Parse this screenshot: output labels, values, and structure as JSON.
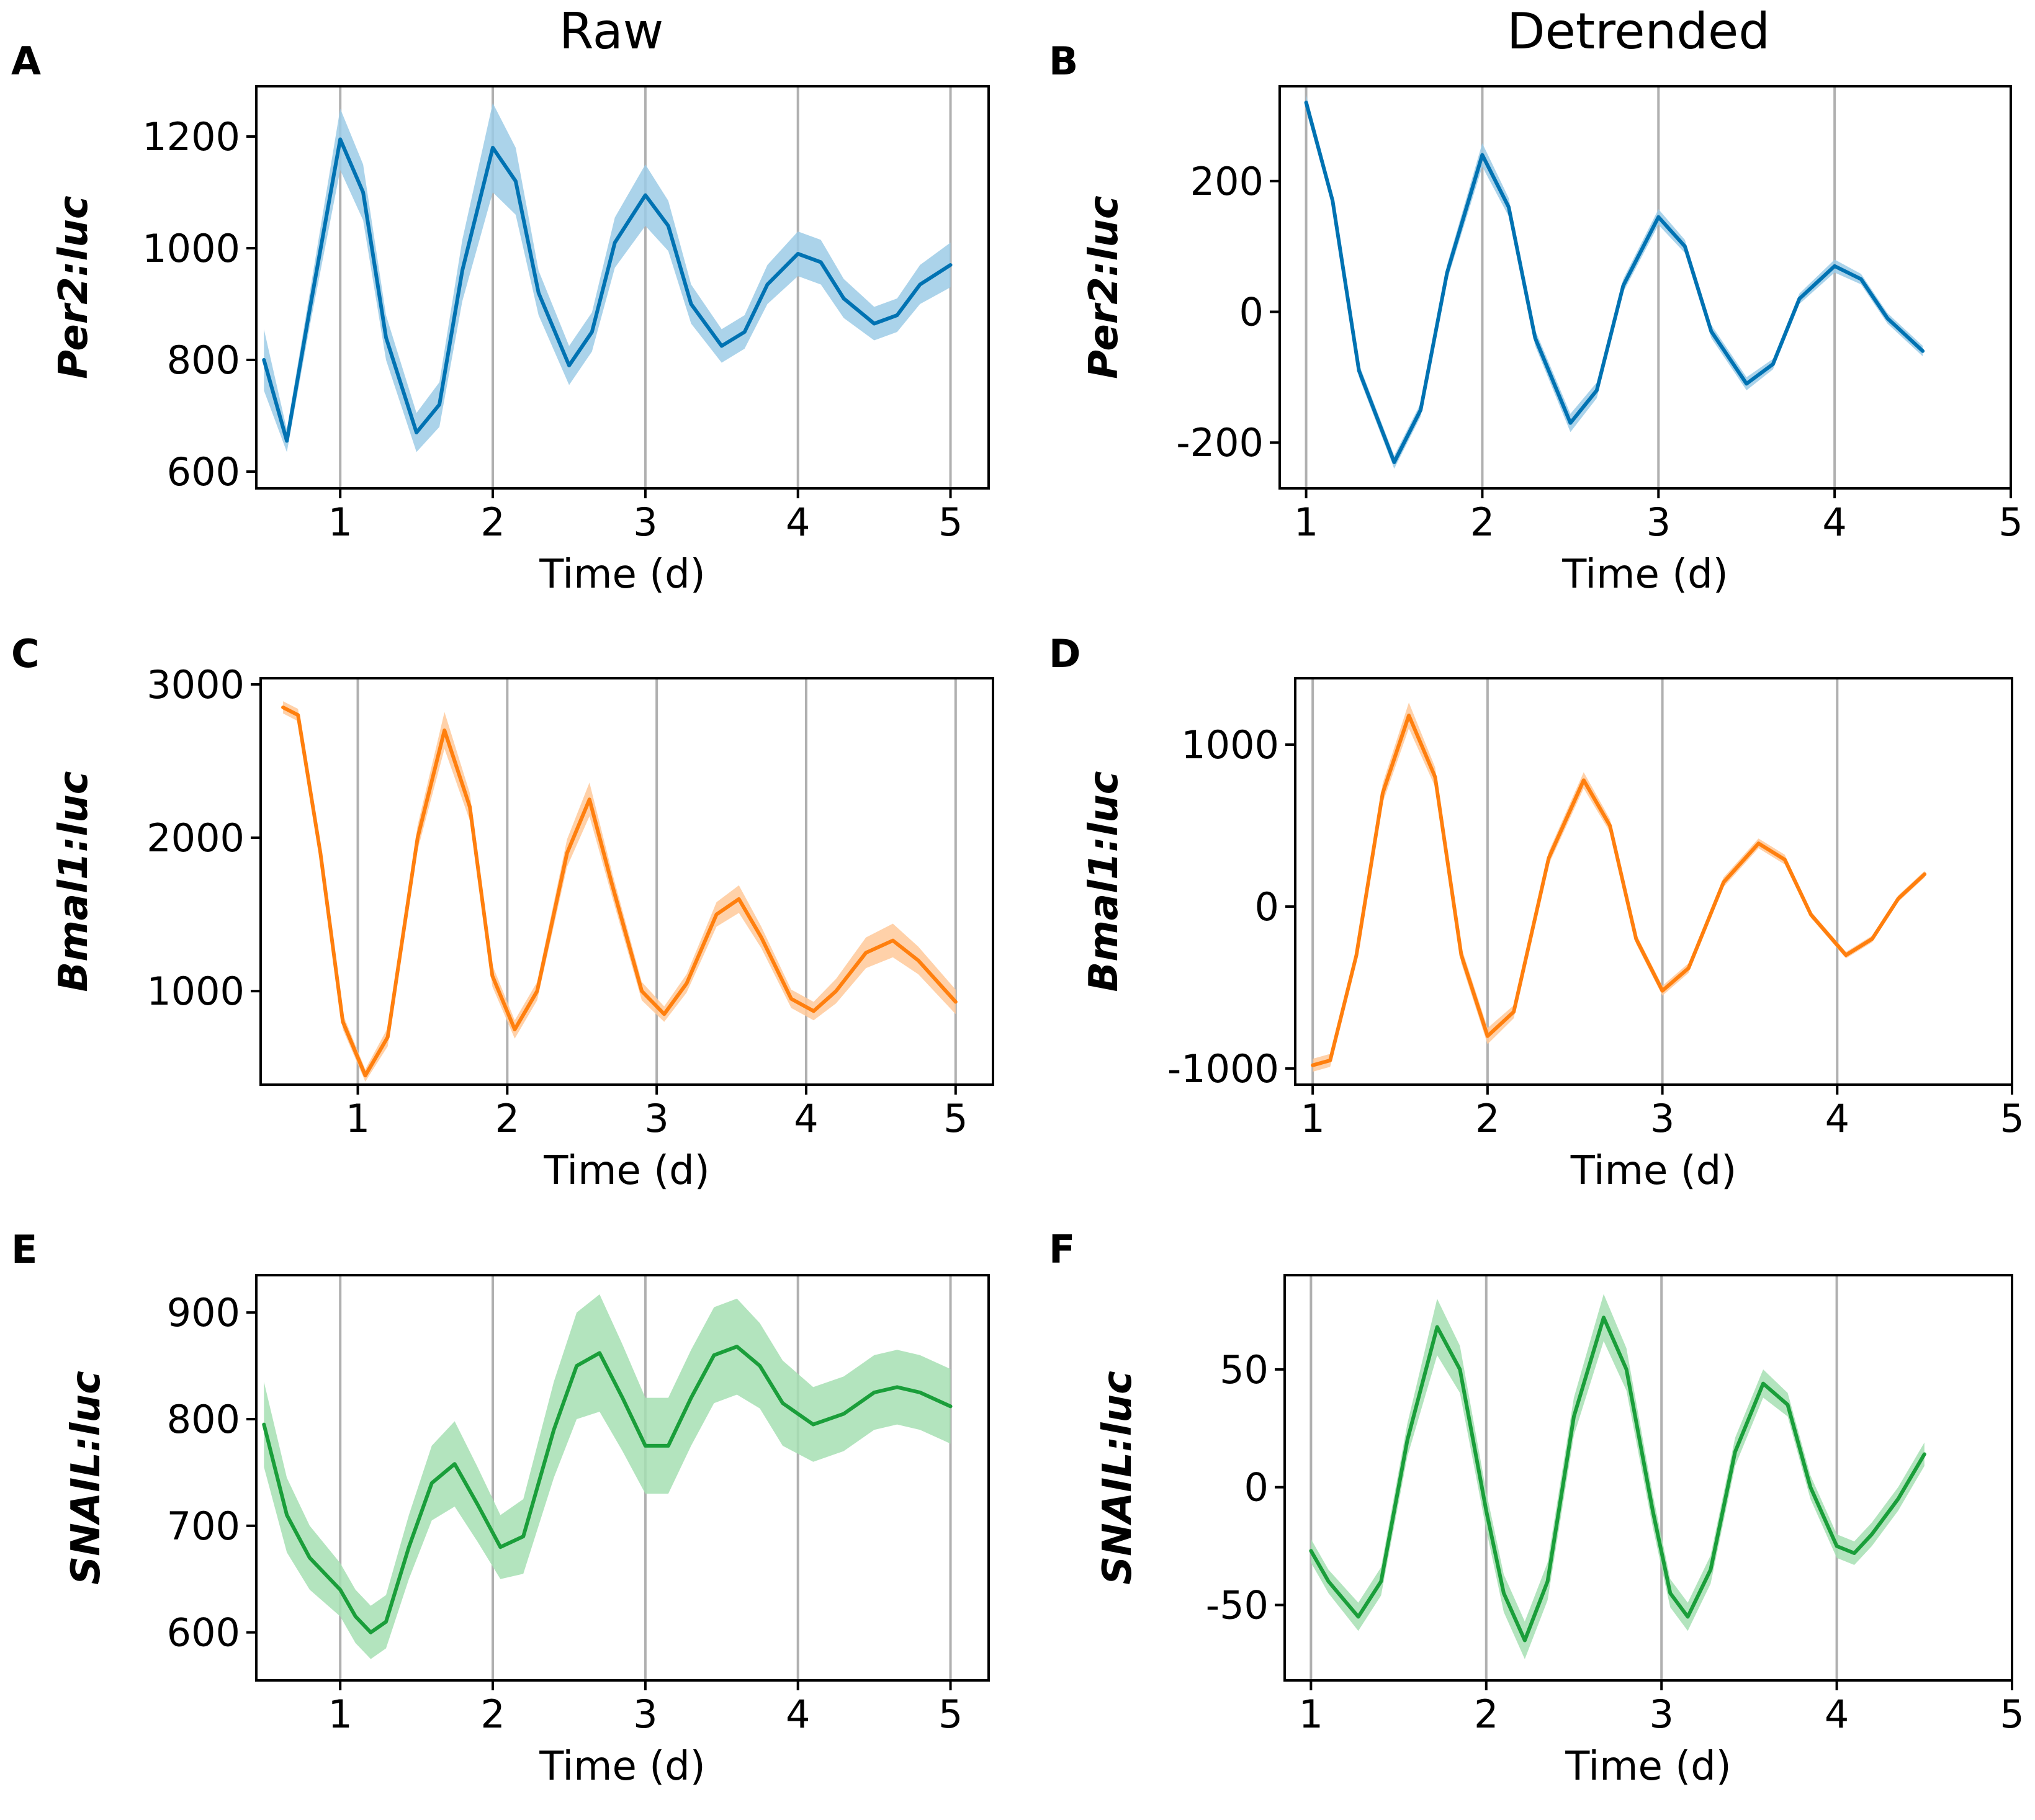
{
  "column_titles": [
    "Raw",
    "Detrended"
  ],
  "colors": {
    "blue": "#0072b2",
    "blue_band": "#9ccbe6",
    "orange": "#ff7f0e",
    "orange_band": "#ffc99a",
    "green": "#1a9e3a",
    "green_band": "#a6dfb3",
    "gridline": "#b0b0b0"
  },
  "chart_data": [
    {
      "panel": "A",
      "type": "line",
      "column": "Raw",
      "color_key": "blue",
      "xlabel": "Time (d)",
      "ylabel": "Per2:luc",
      "xlim": [
        0.45,
        5.25
      ],
      "ylim": [
        570,
        1290
      ],
      "xticks": [
        1,
        2,
        3,
        4,
        5
      ],
      "xtick_labels": [
        "1",
        "2",
        "3",
        "4",
        "5"
      ],
      "yticks": [
        600,
        800,
        1000,
        1200
      ],
      "ytick_labels": [
        "600",
        "800",
        "1000",
        "1200"
      ],
      "vlines": [
        1,
        2,
        3,
        4,
        5
      ],
      "x": [
        0.5,
        0.65,
        0.8,
        1.0,
        1.15,
        1.3,
        1.5,
        1.65,
        1.8,
        2.0,
        2.15,
        2.3,
        2.5,
        2.65,
        2.8,
        3.0,
        3.15,
        3.3,
        3.5,
        3.65,
        3.8,
        4.0,
        4.15,
        4.3,
        4.5,
        4.65,
        4.8,
        5.0
      ],
      "y": [
        800,
        655,
        890,
        1195,
        1100,
        840,
        670,
        720,
        960,
        1180,
        1120,
        920,
        790,
        850,
        1010,
        1095,
        1040,
        900,
        825,
        850,
        935,
        990,
        975,
        910,
        865,
        880,
        935,
        970
      ],
      "err": [
        55,
        20,
        30,
        55,
        50,
        40,
        35,
        40,
        55,
        80,
        60,
        40,
        35,
        35,
        45,
        55,
        45,
        35,
        30,
        30,
        35,
        40,
        40,
        35,
        30,
        30,
        35,
        40
      ]
    },
    {
      "panel": "B",
      "type": "line",
      "column": "Detrended",
      "color_key": "blue",
      "xlabel": "Time (d)",
      "ylabel": "Per2:luc",
      "xlim": [
        0.85,
        5.0
      ],
      "ylim": [
        -270,
        345
      ],
      "xticks": [
        1,
        2,
        3,
        4,
        5
      ],
      "xtick_labels": [
        "1",
        "2",
        "3",
        "4",
        "5"
      ],
      "yticks": [
        -200,
        0,
        200
      ],
      "ytick_labels": [
        "-200",
        "0",
        "200"
      ],
      "vlines": [
        1,
        2,
        3,
        4
      ],
      "x": [
        1.0,
        1.15,
        1.3,
        1.5,
        1.65,
        1.8,
        2.0,
        2.15,
        2.3,
        2.5,
        2.65,
        2.8,
        3.0,
        3.15,
        3.3,
        3.5,
        3.65,
        3.8,
        4.0,
        4.15,
        4.3,
        4.5
      ],
      "y": [
        320,
        170,
        -90,
        -230,
        -150,
        60,
        240,
        160,
        -40,
        -170,
        -120,
        40,
        145,
        100,
        -30,
        -110,
        -80,
        20,
        70,
        50,
        -10,
        -60
      ],
      "err": [
        12,
        10,
        10,
        10,
        10,
        12,
        18,
        14,
        12,
        14,
        12,
        10,
        12,
        10,
        10,
        10,
        8,
        8,
        10,
        8,
        8,
        8
      ]
    },
    {
      "panel": "C",
      "type": "line",
      "column": "Raw",
      "color_key": "orange",
      "xlabel": "Time (d)",
      "ylabel": "Bmal1:luc",
      "xlim": [
        0.35,
        5.25
      ],
      "ylim": [
        390,
        3040
      ],
      "xticks": [
        1,
        2,
        3,
        4,
        5
      ],
      "xtick_labels": [
        "1",
        "2",
        "3",
        "4",
        "5"
      ],
      "yticks": [
        1000,
        2000,
        3000
      ],
      "ytick_labels": [
        "1000",
        "2000",
        "3000"
      ],
      "vlines": [
        1,
        2,
        3,
        4,
        5
      ],
      "x": [
        0.5,
        0.6,
        0.75,
        0.9,
        1.05,
        1.2,
        1.4,
        1.58,
        1.75,
        1.9,
        2.05,
        2.2,
        2.4,
        2.55,
        2.7,
        2.9,
        3.05,
        3.2,
        3.4,
        3.55,
        3.7,
        3.9,
        4.05,
        4.2,
        4.4,
        4.58,
        4.75,
        5.0
      ],
      "y": [
        2850,
        2800,
        1900,
        800,
        450,
        700,
        2000,
        2700,
        2200,
        1100,
        750,
        1000,
        1900,
        2250,
        1700,
        1000,
        850,
        1050,
        1500,
        1600,
        1350,
        950,
        870,
        1000,
        1250,
        1330,
        1200,
        930
      ],
      "err": [
        40,
        40,
        50,
        50,
        40,
        60,
        80,
        120,
        90,
        70,
        60,
        60,
        90,
        110,
        80,
        60,
        50,
        60,
        80,
        90,
        70,
        60,
        60,
        80,
        100,
        110,
        90,
        80
      ]
    },
    {
      "panel": "D",
      "type": "line",
      "column": "Detrended",
      "color_key": "orange",
      "xlabel": "Time (d)",
      "ylabel": "Bmal1:luc",
      "xlim": [
        0.9,
        5.0
      ],
      "ylim": [
        -1100,
        1410
      ],
      "xticks": [
        1,
        2,
        3,
        4,
        5
      ],
      "xtick_labels": [
        "1",
        "2",
        "3",
        "4",
        "5"
      ],
      "yticks": [
        -1000,
        0,
        1000
      ],
      "ytick_labels": [
        "-1000",
        "0",
        "1000"
      ],
      "vlines": [
        1,
        2,
        3,
        4
      ],
      "x": [
        1.0,
        1.1,
        1.25,
        1.4,
        1.55,
        1.7,
        1.85,
        2.0,
        2.15,
        2.35,
        2.55,
        2.7,
        2.85,
        3.0,
        3.15,
        3.35,
        3.55,
        3.7,
        3.85,
        4.05,
        4.2,
        4.35,
        4.5
      ],
      "y": [
        -980,
        -950,
        -300,
        700,
        1180,
        800,
        -300,
        -800,
        -650,
        300,
        780,
        500,
        -200,
        -520,
        -380,
        150,
        390,
        290,
        -50,
        -300,
        -200,
        50,
        200
      ],
      "err": [
        40,
        40,
        40,
        60,
        80,
        60,
        50,
        50,
        40,
        40,
        50,
        40,
        30,
        30,
        30,
        30,
        30,
        30,
        20,
        20,
        20,
        20,
        20
      ]
    },
    {
      "panel": "E",
      "type": "line",
      "column": "Raw",
      "color_key": "green",
      "xlabel": "Time (d)",
      "ylabel": "SNAIL:luc",
      "xlim": [
        0.45,
        5.25
      ],
      "ylim": [
        555,
        935
      ],
      "xticks": [
        1,
        2,
        3,
        4,
        5
      ],
      "xtick_labels": [
        "1",
        "2",
        "3",
        "4",
        "5"
      ],
      "yticks": [
        600,
        700,
        800,
        900
      ],
      "ytick_labels": [
        "600",
        "700",
        "800",
        "900"
      ],
      "vlines": [
        1,
        2,
        3,
        4,
        5
      ],
      "x": [
        0.5,
        0.65,
        0.8,
        1.0,
        1.1,
        1.2,
        1.3,
        1.45,
        1.6,
        1.75,
        1.9,
        2.05,
        2.2,
        2.4,
        2.55,
        2.7,
        2.85,
        3.0,
        3.15,
        3.3,
        3.45,
        3.6,
        3.75,
        3.9,
        4.1,
        4.3,
        4.5,
        4.65,
        4.8,
        5.0
      ],
      "y": [
        795,
        710,
        670,
        640,
        615,
        600,
        610,
        680,
        740,
        758,
        720,
        680,
        690,
        790,
        850,
        862,
        820,
        775,
        775,
        820,
        860,
        868,
        850,
        815,
        795,
        805,
        825,
        830,
        825,
        812
      ],
      "err": [
        40,
        35,
        30,
        25,
        25,
        25,
        25,
        30,
        35,
        40,
        35,
        30,
        35,
        45,
        50,
        55,
        50,
        45,
        45,
        45,
        45,
        45,
        40,
        40,
        35,
        35,
        35,
        35,
        35,
        35
      ]
    },
    {
      "panel": "F",
      "type": "line",
      "column": "Detrended",
      "color_key": "green",
      "xlabel": "Time (d)",
      "ylabel": "SNAIL:luc",
      "xlim": [
        0.85,
        5.0
      ],
      "ylim": [
        -82,
        90
      ],
      "xticks": [
        1,
        2,
        3,
        4,
        5
      ],
      "xtick_labels": [
        "1",
        "2",
        "3",
        "4",
        "5"
      ],
      "yticks": [
        -50,
        0,
        50
      ],
      "ytick_labels": [
        "-50",
        "0",
        "50"
      ],
      "vlines": [
        1,
        2,
        3,
        4
      ],
      "x": [
        1.0,
        1.1,
        1.27,
        1.4,
        1.55,
        1.72,
        1.85,
        2.0,
        2.1,
        2.22,
        2.35,
        2.5,
        2.67,
        2.8,
        2.95,
        3.05,
        3.15,
        3.28,
        3.42,
        3.58,
        3.72,
        3.85,
        4.0,
        4.1,
        4.2,
        4.35,
        4.5
      ],
      "y": [
        -27,
        -40,
        -55,
        -40,
        20,
        68,
        50,
        -10,
        -45,
        -65,
        -40,
        30,
        72,
        50,
        -10,
        -45,
        -55,
        -35,
        15,
        44,
        35,
        0,
        -25,
        -28,
        -20,
        -5,
        14
      ],
      "err": [
        5,
        5,
        6,
        6,
        7,
        12,
        10,
        8,
        8,
        8,
        8,
        8,
        10,
        9,
        7,
        6,
        6,
        6,
        6,
        6,
        5,
        5,
        5,
        5,
        5,
        5,
        5
      ]
    }
  ]
}
